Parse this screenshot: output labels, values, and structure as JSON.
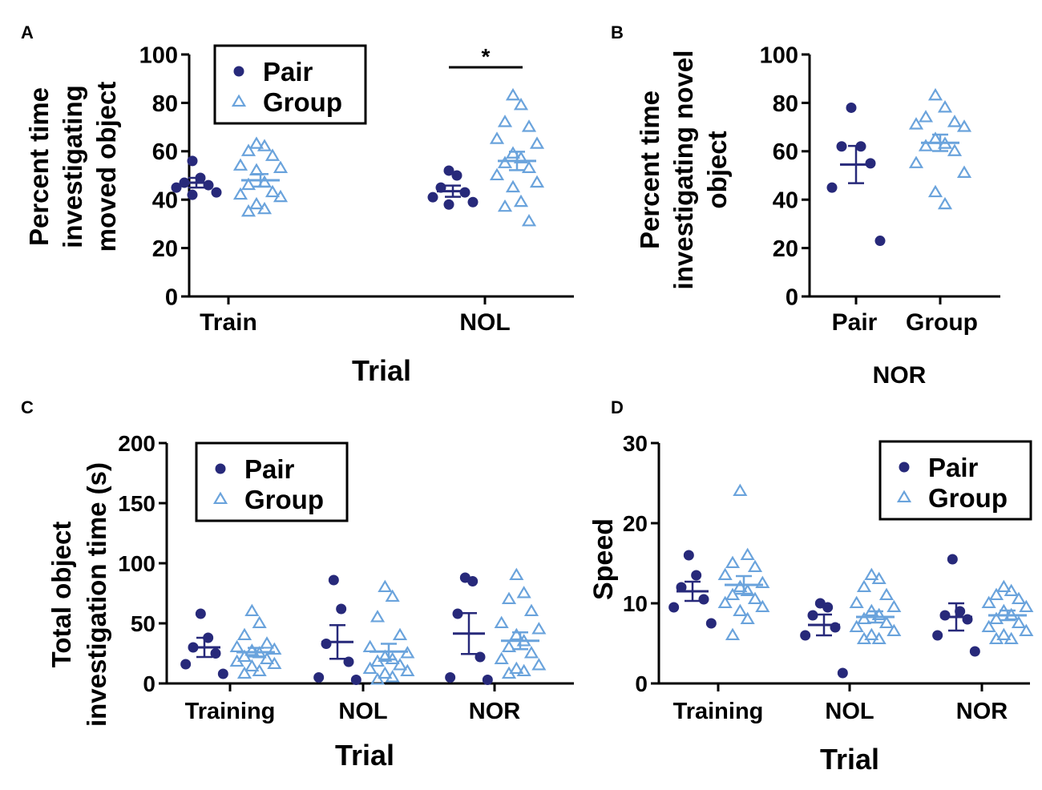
{
  "colors": {
    "pair": "#27297a",
    "group": "#6aa3dc",
    "axis": "#000000"
  },
  "legend": {
    "pair_label": "Pair",
    "group_label": "Group"
  },
  "chart_data": [
    {
      "panel": "A",
      "type": "scatter",
      "ylabel_lines": [
        "Percent time",
        "investigating",
        "moved object"
      ],
      "xlabel": "Trial",
      "ylim": [
        0,
        100
      ],
      "yticks": [
        0,
        20,
        40,
        60,
        80,
        100
      ],
      "categories": [
        "Train",
        "NOL"
      ],
      "legend_position": "top-left",
      "significance": {
        "label": "*",
        "between": "Pair vs Group at NOL"
      },
      "series": [
        {
          "name": "Pair",
          "marker": "circle",
          "groups": [
            {
              "category": "Train",
              "values": [
                56,
                49,
                47,
                46,
                45,
                43,
                42
              ],
              "mean": 47,
              "sem": 2
            },
            {
              "category": "NOL",
              "values": [
                52,
                50,
                45,
                43,
                41,
                39,
                38
              ],
              "mean": 43.5,
              "sem": 2.3
            }
          ]
        },
        {
          "name": "Group",
          "marker": "triangle",
          "groups": [
            {
              "category": "Train",
              "values": [
                63,
                62,
                60,
                58,
                54,
                53,
                52,
                47,
                46,
                43,
                42,
                41,
                38,
                36,
                35
              ],
              "mean": 48,
              "sem": 2.6
            },
            {
              "category": "NOL",
              "values": [
                83,
                79,
                72,
                70,
                65,
                63,
                59,
                57,
                55,
                53,
                50,
                47,
                45,
                39,
                37,
                31
              ],
              "mean": 56,
              "sem": 3.8
            }
          ]
        }
      ]
    },
    {
      "panel": "B",
      "type": "scatter",
      "ylabel_lines": [
        "Percent time",
        "investigating novel",
        "object"
      ],
      "xlabel": "NOR",
      "ylim": [
        0,
        100
      ],
      "yticks": [
        0,
        20,
        40,
        60,
        80,
        100
      ],
      "categories": [
        "Pair",
        "Group"
      ],
      "series": [
        {
          "name": "Pair",
          "marker": "circle",
          "groups": [
            {
              "category": "Pair",
              "values": [
                78,
                62,
                62,
                55,
                45,
                23
              ],
              "mean": 54.5,
              "sem": 7.7
            }
          ]
        },
        {
          "name": "Group",
          "marker": "triangle",
          "groups": [
            {
              "category": "Group",
              "values": [
                83,
                78,
                74,
                72,
                71,
                70,
                65,
                63,
                62,
                60,
                55,
                51,
                43,
                38
              ],
              "mean": 63.5,
              "sem": 3.4
            }
          ]
        }
      ]
    },
    {
      "panel": "C",
      "type": "scatter",
      "ylabel_lines": [
        "Total object",
        "investigation time (s)"
      ],
      "xlabel": "Trial",
      "ylim": [
        0,
        200
      ],
      "yticks": [
        0,
        50,
        100,
        150,
        200
      ],
      "categories": [
        "Training",
        "NOL",
        "NOR"
      ],
      "legend_position": "top-left",
      "series": [
        {
          "name": "Pair",
          "marker": "circle",
          "groups": [
            {
              "category": "Training",
              "values": [
                58,
                38,
                30,
                25,
                16,
                8
              ],
              "mean": 30,
              "sem": 8
            },
            {
              "category": "NOL",
              "values": [
                86,
                62,
                33,
                18,
                5,
                3
              ],
              "mean": 34.5,
              "sem": 14
            },
            {
              "category": "NOR",
              "values": [
                88,
                85,
                58,
                22,
                5,
                3
              ],
              "mean": 41.5,
              "sem": 17
            }
          ]
        },
        {
          "name": "Group",
          "marker": "triangle",
          "groups": [
            {
              "category": "Training",
              "values": [
                60,
                50,
                40,
                33,
                30,
                28,
                27,
                25,
                22,
                20,
                18,
                16,
                14,
                10,
                8
              ],
              "mean": 26,
              "sem": 3.6
            },
            {
              "category": "NOL",
              "values": [
                80,
                72,
                55,
                40,
                30,
                25,
                22,
                20,
                18,
                15,
                12,
                10,
                8,
                5,
                3
              ],
              "mean": 26.5,
              "sem": 6.5
            },
            {
              "category": "NOR",
              "values": [
                90,
                75,
                70,
                60,
                50,
                45,
                40,
                35,
                30,
                25,
                20,
                15,
                12,
                10,
                8
              ],
              "mean": 35.5,
              "sem": 7
            }
          ]
        }
      ]
    },
    {
      "panel": "D",
      "type": "scatter",
      "ylabel_lines": [
        "Speed"
      ],
      "xlabel": "Trial",
      "ylim": [
        0,
        30
      ],
      "yticks": [
        0,
        10,
        20,
        30
      ],
      "categories": [
        "Training",
        "NOL",
        "NOR"
      ],
      "legend_position": "top-right",
      "series": [
        {
          "name": "Pair",
          "marker": "circle",
          "groups": [
            {
              "category": "Training",
              "values": [
                16,
                13.5,
                12,
                10.5,
                9.5,
                7.5
              ],
              "mean": 11.5,
              "sem": 1.2
            },
            {
              "category": "NOL",
              "values": [
                10,
                9.5,
                8.5,
                7,
                6,
                1.3
              ],
              "mean": 7.3,
              "sem": 1.3
            },
            {
              "category": "NOR",
              "values": [
                15.5,
                9,
                8.5,
                8,
                6,
                4
              ],
              "mean": 8.3,
              "sem": 1.7
            }
          ]
        },
        {
          "name": "Group",
          "marker": "triangle",
          "groups": [
            {
              "category": "Training",
              "values": [
                24,
                16,
                15,
                14.5,
                13.5,
                12.5,
                12,
                11.5,
                11,
                10.5,
                10,
                9.5,
                9,
                8,
                6
              ],
              "mean": 12.3,
              "sem": 1.1
            },
            {
              "category": "NOL",
              "values": [
                13.5,
                13,
                12,
                11,
                10,
                9.5,
                9,
                8.5,
                8,
                7.5,
                7,
                6.5,
                6,
                5.5,
                5.5
              ],
              "mean": 8.3,
              "sem": 0.7
            },
            {
              "category": "NOR",
              "values": [
                12,
                11.5,
                11,
                10.5,
                10,
                9.5,
                9,
                8.5,
                8,
                7.5,
                7,
                6.5,
                6,
                5.5,
                5.5
              ],
              "mean": 8.5,
              "sem": 0.6
            }
          ]
        }
      ]
    }
  ]
}
